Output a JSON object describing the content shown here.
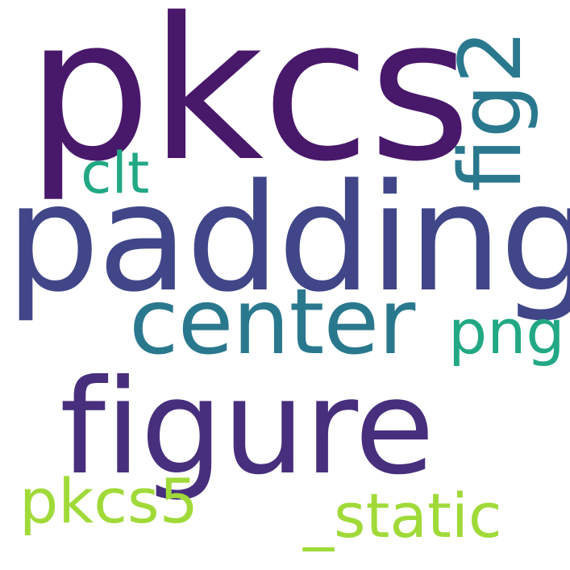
{
  "words": {
    "pkcs": {
      "text": "pkcs",
      "color": "#48186a"
    },
    "padding": {
      "text": "padding",
      "color": "#404688"
    },
    "fig2": {
      "text": "fig2",
      "color": "#2a788e"
    },
    "clt": {
      "text": "clt",
      "color": "#22a884"
    },
    "center": {
      "text": "center",
      "color": "#2a788e"
    },
    "png": {
      "text": "png",
      "color": "#22a884"
    },
    "figure": {
      "text": "figure",
      "color": "#472f7d"
    },
    "pkcs5": {
      "text": "pkcs5",
      "color": "#a0da39"
    },
    "static": {
      "text": "_static",
      "color": "#a0da39"
    }
  }
}
